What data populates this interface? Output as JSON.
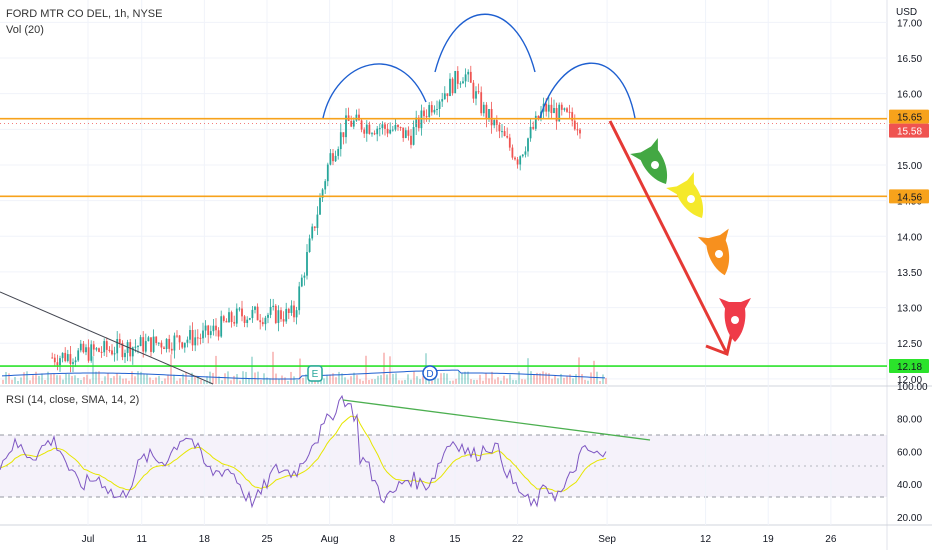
{
  "header": {
    "symbol_line": "FORD MTR CO DEL, 1h, NYSE",
    "volume_label": "Vol (20)"
  },
  "rsi_panel": {
    "label": "RSI (14, close, SMA, 14, 2)"
  },
  "axis": {
    "currency": "USD",
    "price_ticks": [
      "17.00",
      "16.50",
      "16.00",
      "15.50",
      "15.00",
      "14.50",
      "14.00",
      "13.50",
      "13.00",
      "12.50",
      "12.00"
    ],
    "rsi_ticks": [
      "100.00",
      "80.00",
      "60.00",
      "40.00",
      "20.00"
    ],
    "date_ticks": [
      "Jul",
      "11",
      "18",
      "25",
      "Aug",
      "8",
      "15",
      "22",
      "Sep",
      "12",
      "19",
      "26"
    ]
  },
  "price_tags": [
    {
      "value": "15.65",
      "color": "#f7a21b"
    },
    {
      "value": "15.58",
      "color": "#ef5350"
    },
    {
      "value": "14.56",
      "color": "#f7a21b"
    },
    {
      "value": "12.18",
      "color": "#2be32b"
    }
  ],
  "events": [
    {
      "label": "E"
    },
    {
      "label": "D"
    }
  ],
  "colors": {
    "up": "#26a69a",
    "down": "#ef5350",
    "orange": "#f7a21b",
    "green": "#2be32b",
    "rsi": "#7e57c2",
    "rsi_sma": "#e6e600",
    "arc": "#1e5fd0",
    "arrow": "#e53935",
    "volume_ma": "#1e5fd0"
  },
  "chart_data": {
    "type": "candlestick",
    "title": "FORD MTR CO DEL, 1h, NYSE",
    "y_range": [
      11.9,
      17.3
    ],
    "horizontal_levels": [
      15.65,
      14.56,
      12.18
    ],
    "last_price": 15.58,
    "price_path": [
      {
        "date": "Jul 1",
        "price": 12.3
      },
      {
        "date": "Jul 18",
        "price": 12.6
      },
      {
        "date": "Jul 22",
        "price": 12.9
      },
      {
        "date": "Jul 28",
        "price": 12.9
      },
      {
        "date": "Aug 1",
        "price": 15.1
      },
      {
        "date": "Aug 3",
        "price": 15.6
      },
      {
        "date": "Aug 8",
        "price": 15.5
      },
      {
        "date": "Aug 10",
        "price": 15.4
      },
      {
        "date": "Aug 12",
        "price": 15.8
      },
      {
        "date": "Aug 16",
        "price": 16.3
      },
      {
        "date": "Aug 18",
        "price": 15.8
      },
      {
        "date": "Aug 22",
        "price": 15.1
      },
      {
        "date": "Aug 25",
        "price": 15.8
      },
      {
        "date": "Aug 29",
        "price": 15.58
      }
    ],
    "projection": {
      "from": {
        "date": "Aug 29",
        "price": 15.65
      },
      "to": {
        "date": "Sep 13",
        "price": 12.2
      }
    },
    "rsi": {
      "y_range": [
        15,
        100
      ],
      "upper": 70,
      "middle": 50,
      "lower": 30,
      "peak": 94,
      "low": 22,
      "divergence_line": {
        "from": 94,
        "to": 67
      }
    }
  }
}
